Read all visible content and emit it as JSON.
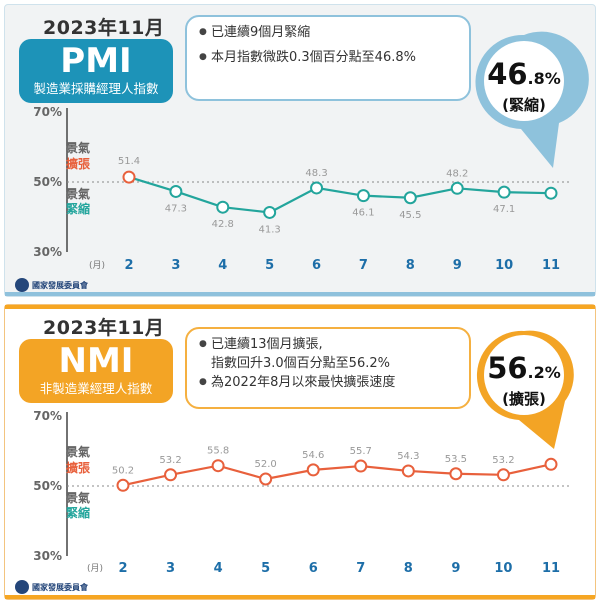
{
  "panels": [
    {
      "id": "pmi",
      "period": "2023年11月",
      "index_name": "PMI",
      "index_fullname": "製造業採購經理人指數",
      "notes": [
        "已連續9個月緊縮",
        "本月指數微跌0.3個百分點至46.8%"
      ],
      "callout": {
        "value_int": "46",
        "value_dec": ".8",
        "unit": "%",
        "status": "(緊縮)"
      },
      "expand_label": [
        "景氣",
        "擴張"
      ],
      "contract_label": [
        "景氣",
        "緊縮"
      ],
      "logo_text": "國家發展委員會",
      "colors": {
        "main": "#1d93b8",
        "line": "#23a59c",
        "accent": "#e8603c",
        "border": "#8ec2dc"
      }
    },
    {
      "id": "nmi",
      "period": "2023年11月",
      "index_name": "NMI",
      "index_fullname": "非製造業經理人指數",
      "notes": [
        "已連續13個月擴張,",
        "指數回升3.0個百分點至56.2%",
        "為2022年8月以來最快擴張速度"
      ],
      "callout": {
        "value_int": "56",
        "value_dec": ".2",
        "unit": "%",
        "status": "(擴張)"
      },
      "expand_label": [
        "景氣",
        "擴張"
      ],
      "contract_label": [
        "景氣",
        "緊縮"
      ],
      "logo_text": "國家發展委員會",
      "colors": {
        "main": "#f3a425",
        "line": "#e8603c",
        "accent": "#e8603c",
        "border": "#f5b040"
      }
    }
  ],
  "chart_data": [
    {
      "type": "line",
      "x": [
        "2",
        "3",
        "4",
        "5",
        "6",
        "7",
        "8",
        "9",
        "10",
        "11"
      ],
      "xlabel": "(月)",
      "yticks": [
        "70%",
        "50%",
        "30%"
      ],
      "ylim": [
        30,
        70
      ],
      "series": [
        {
          "values": [
            51.4,
            47.3,
            42.8,
            41.3,
            48.3,
            46.1,
            45.5,
            48.2,
            47.1,
            46.8
          ]
        }
      ],
      "data_labels": [
        "51.4",
        "47.3",
        "42.8",
        "41.3",
        "48.3",
        "46.1",
        "45.5",
        "48.2",
        "47.1",
        ""
      ],
      "reference_line": 50
    },
    {
      "type": "line",
      "x": [
        "2",
        "3",
        "4",
        "5",
        "6",
        "7",
        "8",
        "9",
        "10",
        "11"
      ],
      "xlabel": "(月)",
      "yticks": [
        "70%",
        "50%",
        "30%"
      ],
      "ylim": [
        30,
        70
      ],
      "series": [
        {
          "values": [
            50.2,
            53.2,
            55.8,
            52.0,
            54.6,
            55.7,
            54.3,
            53.5,
            53.2,
            56.2
          ]
        }
      ],
      "data_labels": [
        "50.2",
        "53.2",
        "55.8",
        "52.0",
        "54.6",
        "55.7",
        "54.3",
        "53.5",
        "53.2",
        ""
      ],
      "reference_line": 50
    }
  ]
}
